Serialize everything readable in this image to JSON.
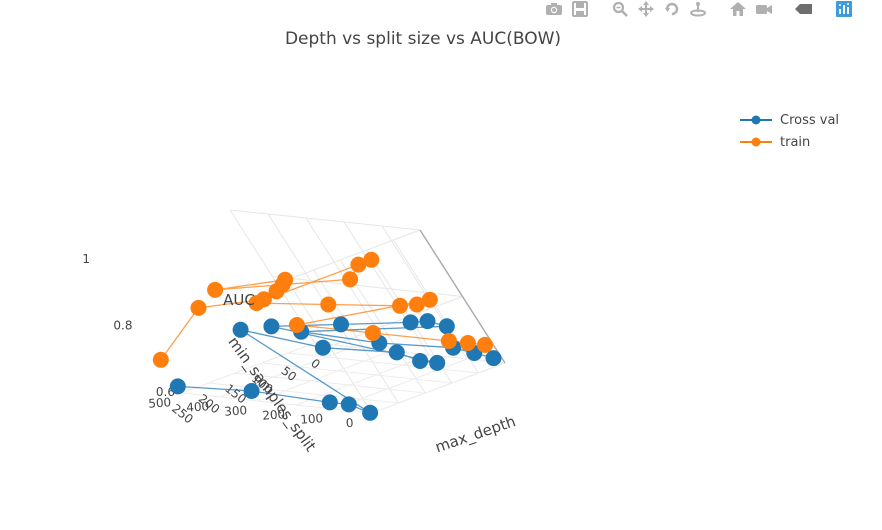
{
  "title": "Depth vs split size vs AUC(BOW)",
  "modebar": {
    "buttons": [
      {
        "name": "camera-icon"
      },
      {
        "name": "save-icon"
      },
      {
        "name": "zoom-icon"
      },
      {
        "name": "pan-icon"
      },
      {
        "name": "orbit-rotation-icon"
      },
      {
        "name": "turntable-rotation-icon"
      },
      {
        "name": "reset-camera-icon"
      },
      {
        "name": "reset-last-view-icon"
      },
      {
        "name": "toggle-hover-icon"
      },
      {
        "name": "plotly-logo-icon"
      }
    ],
    "icon_color": "#b0b0b0",
    "logo_color": "#3f9be0"
  },
  "legend": {
    "placement": "top-right",
    "items": [
      {
        "label": "Cross val",
        "color": "#1f77b4"
      },
      {
        "label": "train",
        "color": "#ff7f0e"
      }
    ]
  },
  "chart_data": {
    "type": "scatter3d-lines",
    "title": "Depth vs split size vs AUC(BOW)",
    "x_axis": {
      "label": "max_depth",
      "range": [
        0,
        250
      ],
      "ticks": [
        "0",
        "50",
        "100",
        "150",
        "200",
        "250"
      ]
    },
    "y_axis": {
      "label": "min_samples_split",
      "range": [
        0,
        500
      ],
      "ticks": [
        "0",
        "100",
        "200",
        "300",
        "400",
        "500"
      ]
    },
    "z_axis": {
      "label": "AUC",
      "range": [
        0.6,
        1.0
      ],
      "ticks": [
        "0.6",
        "0.8",
        "1"
      ]
    },
    "series": [
      {
        "name": "Cross val",
        "color": "#1f77b4",
        "points": [
          {
            "max_depth": 10,
            "min_samples_split": 5,
            "auc": 0.62
          },
          {
            "max_depth": 10,
            "min_samples_split": 50,
            "auc": 0.63
          },
          {
            "max_depth": 10,
            "min_samples_split": 100,
            "auc": 0.64
          },
          {
            "max_depth": 10,
            "min_samples_split": 300,
            "auc": 0.63
          },
          {
            "max_depth": 10,
            "min_samples_split": 500,
            "auc": 0.64
          },
          {
            "max_depth": 50,
            "min_samples_split": 5,
            "auc": 0.74
          },
          {
            "max_depth": 50,
            "min_samples_split": 50,
            "auc": 0.75
          },
          {
            "max_depth": 50,
            "min_samples_split": 100,
            "auc": 0.74
          },
          {
            "max_depth": 50,
            "min_samples_split": 300,
            "auc": 0.71
          },
          {
            "max_depth": 50,
            "min_samples_split": 500,
            "auc": 0.68
          },
          {
            "max_depth": 100,
            "min_samples_split": 5,
            "auc": 0.66
          },
          {
            "max_depth": 100,
            "min_samples_split": 50,
            "auc": 0.66
          },
          {
            "max_depth": 100,
            "min_samples_split": 100,
            "auc": 0.68
          },
          {
            "max_depth": 100,
            "min_samples_split": 300,
            "auc": 0.67
          },
          {
            "max_depth": 100,
            "min_samples_split": 500,
            "auc": 0.7
          },
          {
            "max_depth": 250,
            "min_samples_split": 5,
            "auc": 0.6
          },
          {
            "max_depth": 250,
            "min_samples_split": 50,
            "auc": 0.62
          },
          {
            "max_depth": 250,
            "min_samples_split": 100,
            "auc": 0.62
          },
          {
            "max_depth": 250,
            "min_samples_split": 300,
            "auc": 0.63
          },
          {
            "max_depth": 250,
            "min_samples_split": 500,
            "auc": 0.62
          }
        ]
      },
      {
        "name": "train",
        "color": "#ff7f0e",
        "points": [
          {
            "max_depth": 10,
            "min_samples_split": 5,
            "auc": 0.66
          },
          {
            "max_depth": 10,
            "min_samples_split": 50,
            "auc": 0.66
          },
          {
            "max_depth": 10,
            "min_samples_split": 100,
            "auc": 0.66
          },
          {
            "max_depth": 10,
            "min_samples_split": 300,
            "auc": 0.66
          },
          {
            "max_depth": 10,
            "min_samples_split": 500,
            "auc": 0.66
          },
          {
            "max_depth": 50,
            "min_samples_split": 5,
            "auc": 0.82
          },
          {
            "max_depth": 50,
            "min_samples_split": 50,
            "auc": 0.8
          },
          {
            "max_depth": 50,
            "min_samples_split": 100,
            "auc": 0.79
          },
          {
            "max_depth": 50,
            "min_samples_split": 300,
            "auc": 0.77
          },
          {
            "max_depth": 50,
            "min_samples_split": 500,
            "auc": 0.75
          },
          {
            "max_depth": 100,
            "min_samples_split": 5,
            "auc": 0.97
          },
          {
            "max_depth": 100,
            "min_samples_split": 50,
            "auc": 0.95
          },
          {
            "max_depth": 100,
            "min_samples_split": 100,
            "auc": 0.9
          },
          {
            "max_depth": 100,
            "min_samples_split": 300,
            "auc": 0.86
          },
          {
            "max_depth": 100,
            "min_samples_split": 500,
            "auc": 0.82
          },
          {
            "max_depth": 250,
            "min_samples_split": 5,
            "auc": 1.0
          },
          {
            "max_depth": 250,
            "min_samples_split": 50,
            "auc": 0.96
          },
          {
            "max_depth": 250,
            "min_samples_split": 100,
            "auc": 0.93
          },
          {
            "max_depth": 250,
            "min_samples_split": 300,
            "auc": 0.88
          },
          {
            "max_depth": 250,
            "min_samples_split": 500,
            "auc": 0.7
          }
        ]
      }
    ],
    "grid": true,
    "legend": "top-right"
  }
}
